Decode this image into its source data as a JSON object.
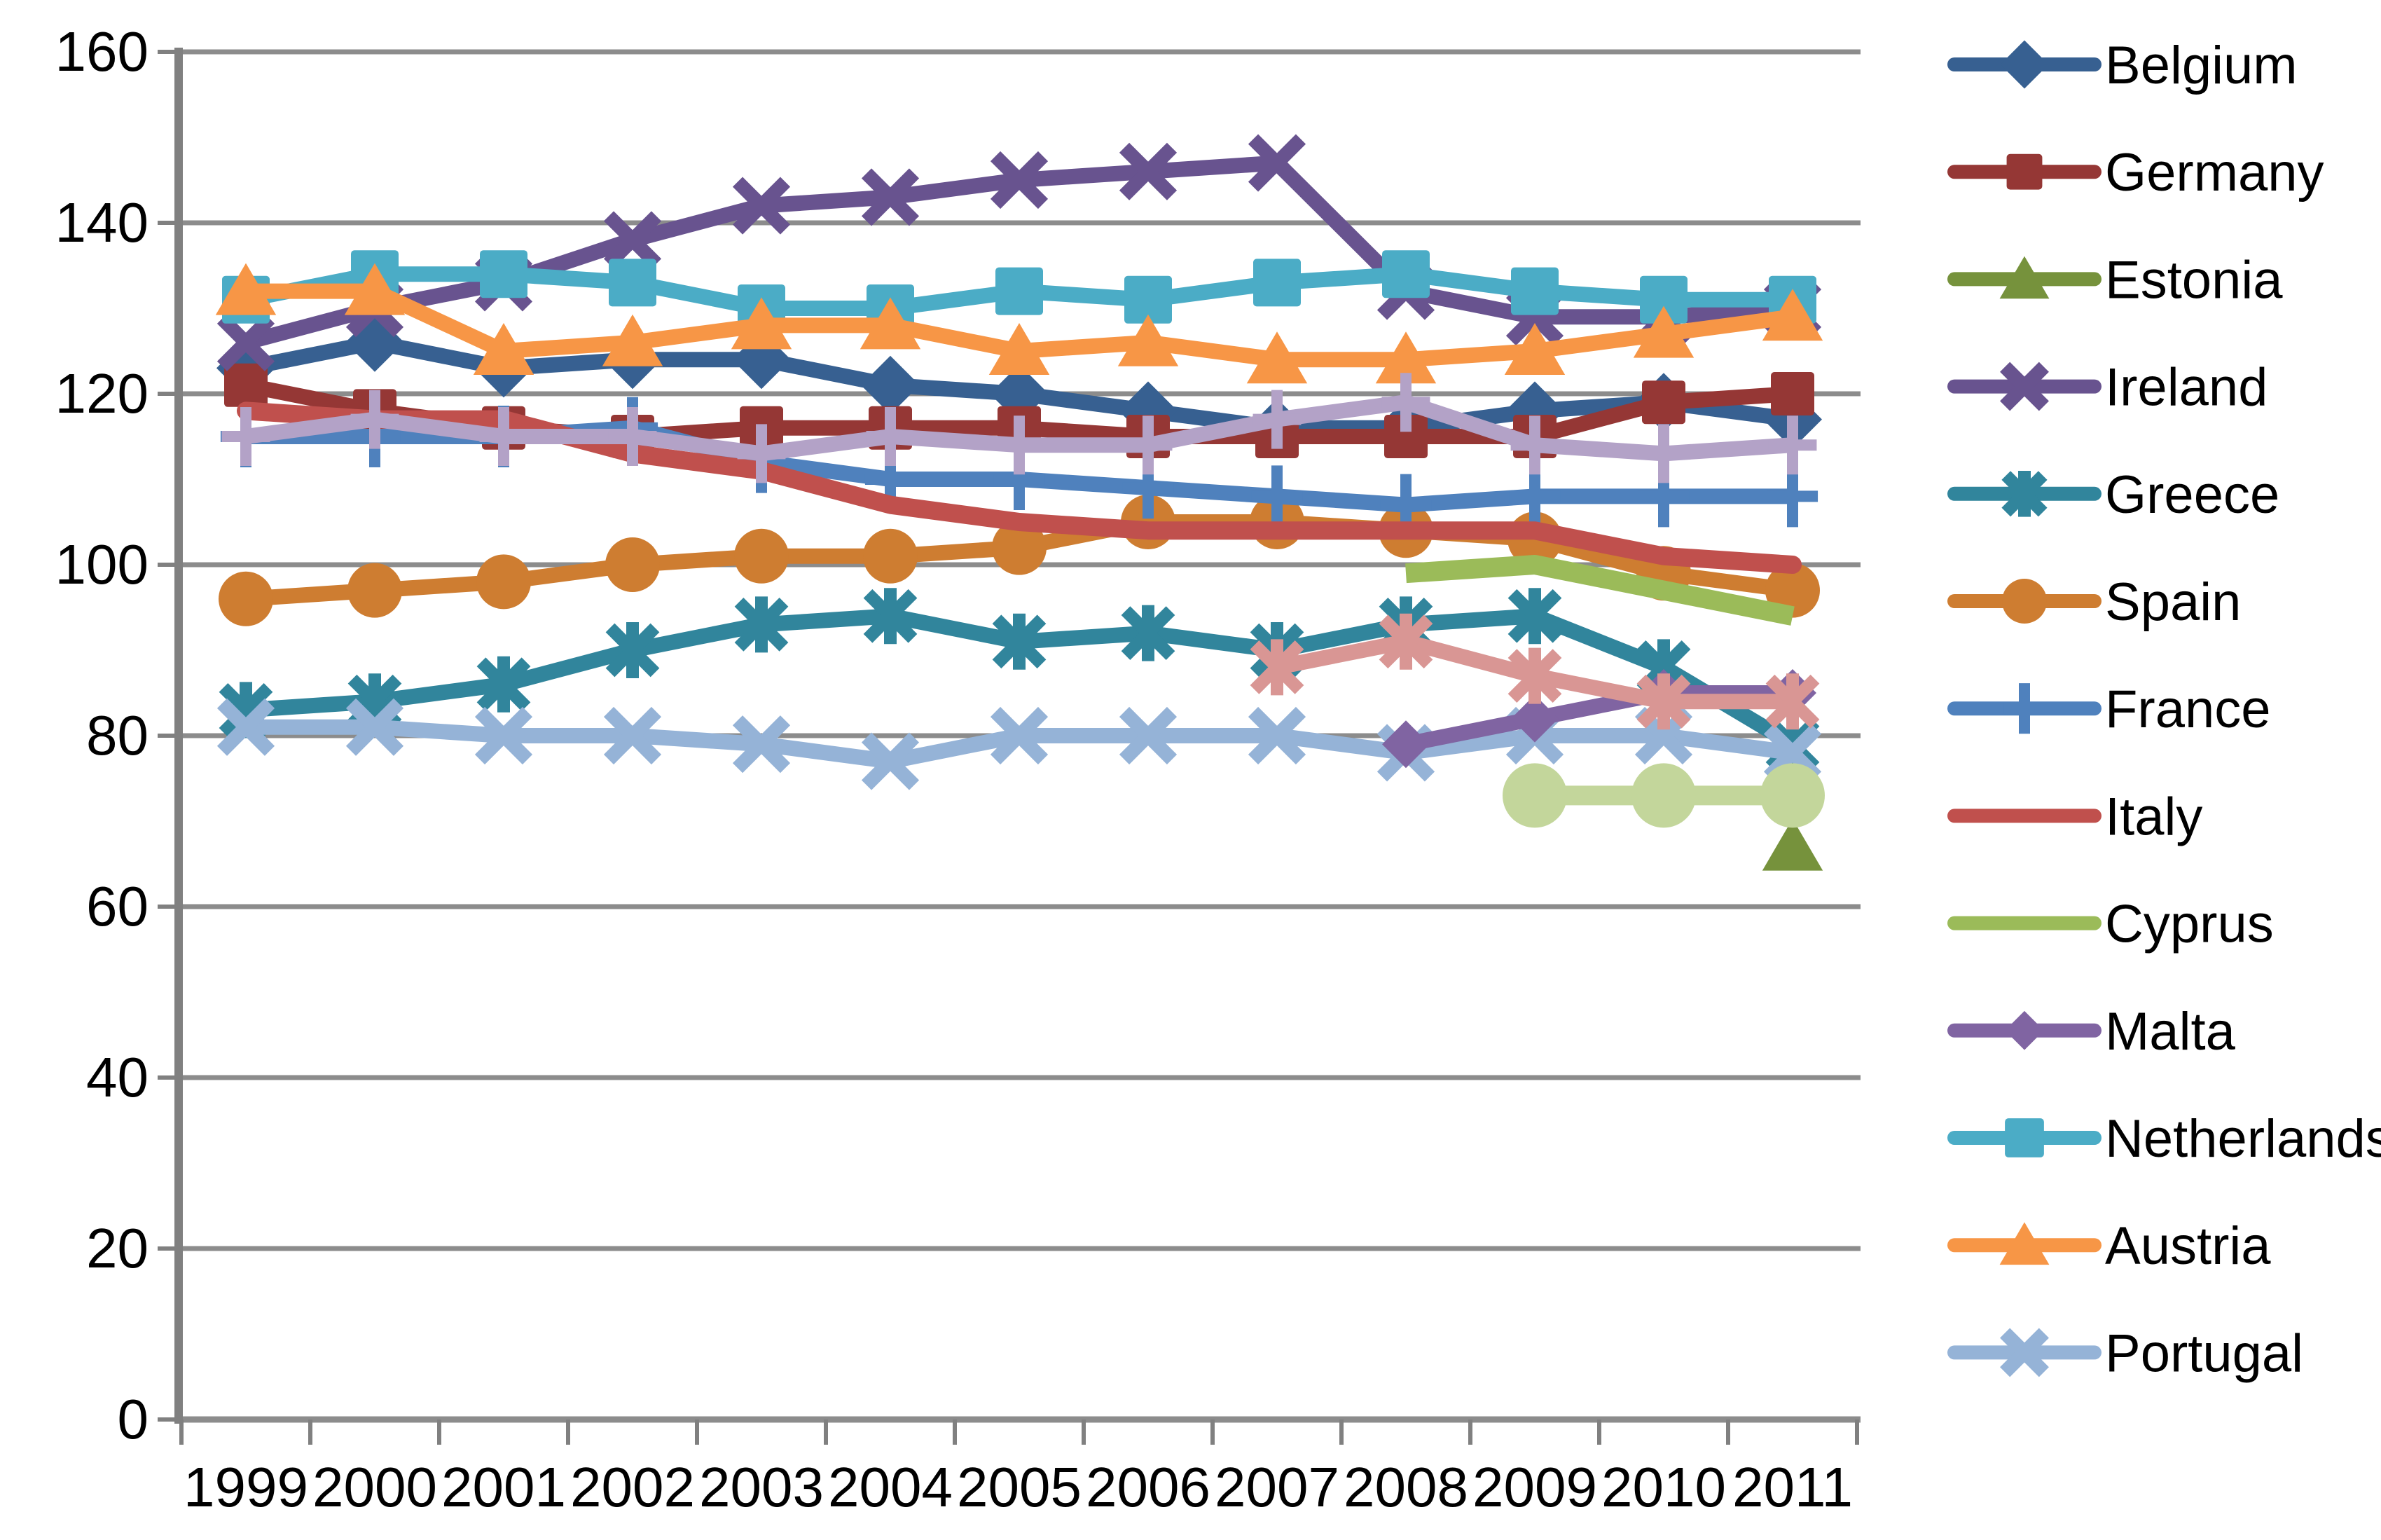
{
  "chart_data": {
    "type": "line",
    "title": "",
    "xlabel": "",
    "ylabel": "",
    "categories": [
      "1999",
      "2000",
      "2001",
      "2002",
      "2003",
      "2004",
      "2005",
      "2006",
      "2007",
      "2008",
      "2009",
      "2010",
      "2011"
    ],
    "yticks": [
      0,
      20,
      40,
      60,
      80,
      100,
      120,
      140,
      160
    ],
    "ylim": [
      0,
      160
    ],
    "grid": true,
    "legend_position": "right",
    "colors": {
      "gridline": "#8C8C8C",
      "axis": "#808080",
      "tick_text": "#000000",
      "background": "#FFFFFF"
    },
    "series": [
      {
        "label": "Belgium",
        "color": "#376091",
        "marker": "diamond",
        "in_legend": true,
        "values": [
          123,
          126,
          123,
          124,
          124,
          121,
          120,
          118,
          116,
          116,
          118,
          119,
          117
        ]
      },
      {
        "label": "Germany",
        "color": "#953735",
        "marker": "square",
        "in_legend": true,
        "values": [
          121,
          118,
          116,
          115,
          116,
          116,
          116,
          115,
          115,
          115,
          115,
          119,
          120
        ]
      },
      {
        "label": "Estonia",
        "color": "#76923C",
        "marker": "triangle",
        "in_legend": true,
        "values": [
          null,
          null,
          null,
          null,
          null,
          null,
          null,
          null,
          null,
          null,
          null,
          null,
          67
        ]
      },
      {
        "label": "Ireland",
        "color": "#68538F",
        "marker": "x",
        "in_legend": true,
        "values": [
          126,
          130,
          133,
          138,
          142,
          143,
          145,
          146,
          147,
          132,
          129,
          129,
          130
        ]
      },
      {
        "label": "Greece",
        "color": "#31859C",
        "marker": "asterisk",
        "in_legend": true,
        "values": [
          83,
          84,
          86,
          90,
          93,
          94,
          91,
          92,
          90,
          93,
          94,
          88,
          79
        ]
      },
      {
        "label": "Spain",
        "color": "#CE7D31",
        "marker": "circle",
        "in_legend": true,
        "values": [
          96,
          97,
          98,
          100,
          101,
          101,
          102,
          105,
          105,
          104,
          103,
          99,
          97
        ]
      },
      {
        "label": "France",
        "color": "#4F81BD",
        "marker": "plus",
        "in_legend": true,
        "values": [
          115,
          115,
          115,
          116,
          112,
          110,
          110,
          109,
          108,
          107,
          108,
          108,
          108
        ]
      },
      {
        "label": "Italy",
        "color": "#C0504D",
        "marker": "none",
        "line_width": 26,
        "in_legend": true,
        "values": [
          118,
          117,
          117,
          113,
          111,
          107,
          105,
          104,
          104,
          104,
          104,
          101,
          100
        ]
      },
      {
        "label": "Cyprus",
        "color": "#9BBB59",
        "marker": "none",
        "line_width": 28,
        "in_legend": true,
        "values": [
          null,
          null,
          null,
          null,
          null,
          null,
          null,
          null,
          null,
          99,
          100,
          97,
          94
        ]
      },
      {
        "label": "Malta",
        "color": "#8064A2",
        "marker": "diamond",
        "z": 13.5,
        "in_legend": true,
        "values": [
          null,
          null,
          null,
          null,
          null,
          null,
          null,
          null,
          null,
          79,
          82,
          85,
          85
        ]
      },
      {
        "label": "Netherlands",
        "color": "#4BACC6",
        "marker": "square",
        "in_legend": true,
        "values": [
          131,
          134,
          134,
          133,
          130,
          130,
          132,
          131,
          133,
          134,
          132,
          131,
          131
        ]
      },
      {
        "label": "Austria",
        "color": "#F79646",
        "marker": "triangle",
        "in_legend": true,
        "values": [
          132,
          132,
          125,
          126,
          128,
          128,
          125,
          126,
          124,
          124,
          125,
          127,
          129
        ]
      },
      {
        "label": "Portugal",
        "color": "#95B3D7",
        "marker": "x",
        "in_legend": true,
        "values": [
          81,
          81,
          80,
          80,
          79,
          77,
          80,
          80,
          80,
          78,
          80,
          80,
          78
        ]
      },
      {
        "label": "",
        "color": "#B3A2C7",
        "marker": "plus",
        "in_legend": false,
        "values": [
          115,
          117,
          115,
          115,
          113,
          115,
          114,
          114,
          117,
          119,
          114,
          113,
          114
        ]
      },
      {
        "label": "",
        "color": "#D99694",
        "marker": "asterisk",
        "in_legend": false,
        "values": [
          null,
          null,
          null,
          null,
          null,
          null,
          null,
          null,
          88,
          91,
          87,
          84,
          84
        ]
      },
      {
        "label": "",
        "color": "#C3D69B",
        "marker": "circle",
        "line_width": 28,
        "in_legend": false,
        "values": [
          null,
          null,
          null,
          null,
          null,
          null,
          null,
          null,
          null,
          null,
          73,
          73,
          73
        ]
      }
    ]
  }
}
